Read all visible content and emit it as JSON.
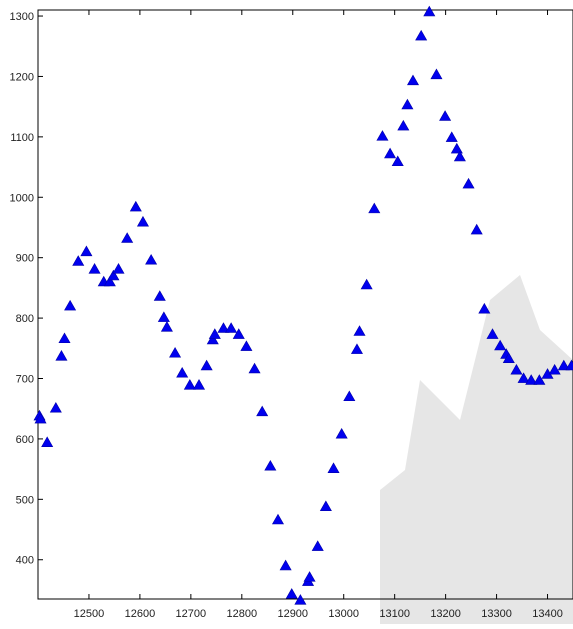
{
  "chart_data": {
    "type": "scatter",
    "title": "",
    "xlabel": "",
    "ylabel": "",
    "xlim": [
      12400,
      13450
    ],
    "ylim": [
      335,
      1310
    ],
    "x_ticks": [
      12500,
      12600,
      12700,
      12800,
      12900,
      13000,
      13100,
      13200,
      13300,
      13400
    ],
    "y_ticks": [
      400,
      500,
      600,
      700,
      800,
      900,
      1000,
      1100,
      1200,
      1300
    ],
    "grid": false,
    "legend": "none",
    "marker": "triangle",
    "marker_color": "#0000ee",
    "watermark_color": "#e6e6e6",
    "series": [
      {
        "points": [
          [
            12403,
            638
          ],
          [
            12405,
            633
          ],
          [
            12418,
            594
          ],
          [
            12435,
            651
          ],
          [
            12446,
            737
          ],
          [
            12452,
            766
          ],
          [
            12463,
            820
          ],
          [
            12479,
            894
          ],
          [
            12495,
            910
          ],
          [
            12511,
            881
          ],
          [
            12529,
            860
          ],
          [
            12541,
            860
          ],
          [
            12548,
            870
          ],
          [
            12558,
            881
          ],
          [
            12575,
            932
          ],
          [
            12592,
            984
          ],
          [
            12606,
            959
          ],
          [
            12622,
            896
          ],
          [
            12639,
            836
          ],
          [
            12647,
            801
          ],
          [
            12653,
            785
          ],
          [
            12669,
            742
          ],
          [
            12683,
            709
          ],
          [
            12698,
            689
          ],
          [
            12716,
            689
          ],
          [
            12731,
            721
          ],
          [
            12743,
            764
          ],
          [
            12747,
            773
          ],
          [
            12764,
            783
          ],
          [
            12779,
            783
          ],
          [
            12794,
            773
          ],
          [
            12809,
            753
          ],
          [
            12825,
            716
          ],
          [
            12840,
            645
          ],
          [
            12856,
            555
          ],
          [
            12871,
            466
          ],
          [
            12886,
            390
          ],
          [
            12898,
            343
          ],
          [
            12915,
            333
          ],
          [
            12930,
            364
          ],
          [
            12933,
            371
          ],
          [
            12949,
            422
          ],
          [
            12965,
            488
          ],
          [
            12980,
            551
          ],
          [
            12996,
            608
          ],
          [
            13011,
            670
          ],
          [
            13026,
            748
          ],
          [
            13031,
            778
          ],
          [
            13045,
            855
          ],
          [
            13060,
            981
          ],
          [
            13076,
            1101
          ],
          [
            13091,
            1072
          ],
          [
            13106,
            1059
          ],
          [
            13117,
            1118
          ],
          [
            13125,
            1153
          ],
          [
            13136,
            1193
          ],
          [
            13152,
            1267
          ],
          [
            13168,
            1307
          ],
          [
            13182,
            1203
          ],
          [
            13199,
            1134
          ],
          [
            13212,
            1099
          ],
          [
            13222,
            1080
          ],
          [
            13228,
            1067
          ],
          [
            13245,
            1022
          ],
          [
            13261,
            946
          ],
          [
            13276,
            815
          ],
          [
            13292,
            773
          ],
          [
            13307,
            754
          ],
          [
            13319,
            740
          ],
          [
            13324,
            733
          ],
          [
            13339,
            714
          ],
          [
            13353,
            700
          ],
          [
            13368,
            697
          ],
          [
            13384,
            697
          ],
          [
            13400,
            707
          ],
          [
            13414,
            714
          ],
          [
            13432,
            721
          ],
          [
            13447,
            721
          ]
        ]
      }
    ]
  }
}
